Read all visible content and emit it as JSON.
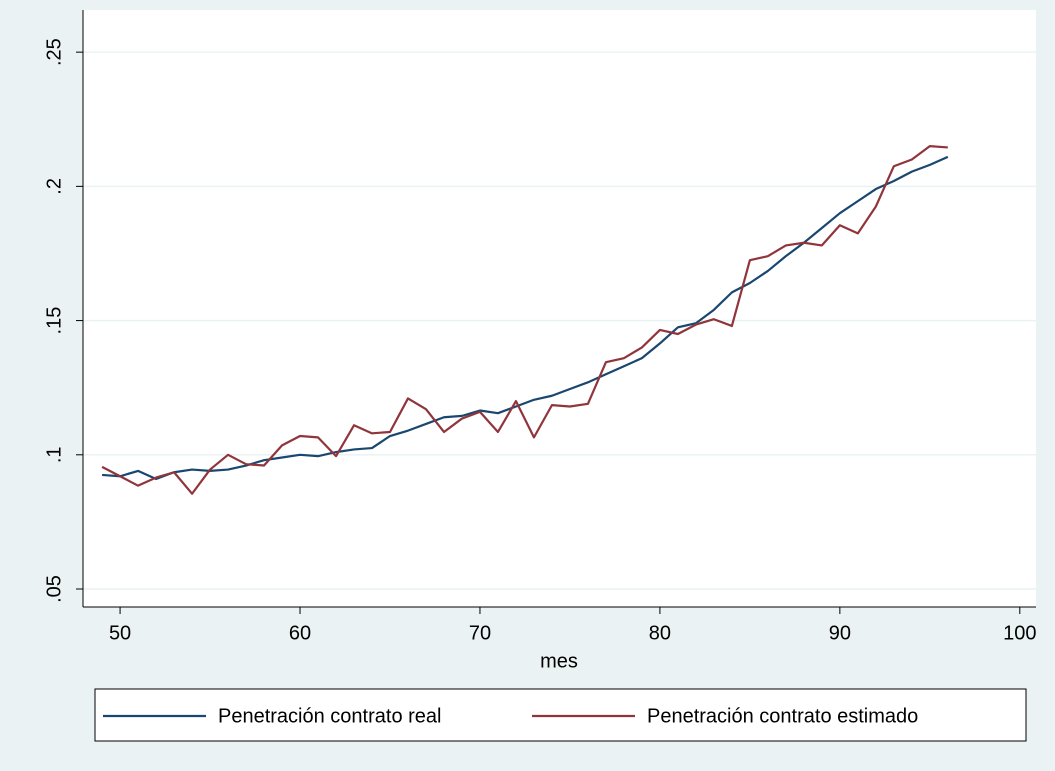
{
  "chart_data": {
    "type": "line",
    "x_label": "mes",
    "x": [
      49,
      50,
      51,
      52,
      53,
      54,
      55,
      56,
      57,
      58,
      59,
      60,
      61,
      62,
      63,
      64,
      65,
      66,
      67,
      68,
      69,
      70,
      71,
      72,
      73,
      74,
      75,
      76,
      77,
      78,
      79,
      80,
      81,
      82,
      83,
      84,
      85,
      86,
      87,
      88,
      89,
      90,
      91,
      92,
      93,
      94,
      95,
      96
    ],
    "series": [
      {
        "name": "Penetración contrato real",
        "color": "#1a476f",
        "values": [
          0.0925,
          0.092,
          0.094,
          0.091,
          0.0935,
          0.0945,
          0.094,
          0.0945,
          0.096,
          0.098,
          0.099,
          0.1,
          0.0995,
          0.101,
          0.102,
          0.1025,
          0.107,
          0.109,
          0.1115,
          0.114,
          0.1145,
          0.1165,
          0.1155,
          0.118,
          0.1205,
          0.122,
          0.1245,
          0.127,
          0.13,
          0.133,
          0.136,
          0.1415,
          0.1475,
          0.149,
          0.154,
          0.1605,
          0.164,
          0.1685,
          0.174,
          0.179,
          0.1845,
          0.19,
          0.1945,
          0.199,
          0.202,
          0.2055,
          0.208,
          0.211
        ]
      },
      {
        "name": "Penetración contrato estimado",
        "color": "#90353b",
        "values": [
          0.0955,
          0.092,
          0.0885,
          0.0915,
          0.0935,
          0.0855,
          0.0945,
          0.1,
          0.0965,
          0.096,
          0.1035,
          0.107,
          0.1065,
          0.0995,
          0.111,
          0.108,
          0.1085,
          0.121,
          0.117,
          0.1085,
          0.1135,
          0.116,
          0.1085,
          0.12,
          0.1065,
          0.1185,
          0.118,
          0.119,
          0.1345,
          0.136,
          0.14,
          0.1465,
          0.145,
          0.1485,
          0.1505,
          0.148,
          0.1725,
          0.174,
          0.178,
          0.179,
          0.178,
          0.1855,
          0.1825,
          0.1925,
          0.2075,
          0.21,
          0.215,
          0.2145
        ]
      }
    ],
    "xlim": [
      47.94,
      100.9
    ],
    "xticks": [
      50,
      60,
      70,
      80,
      90,
      100
    ],
    "ylim": [
      0.0433,
      0.2657
    ],
    "yticks": [
      {
        "value": 0.05,
        "label": ".05"
      },
      {
        "value": 0.1,
        "label": ".1"
      },
      {
        "value": 0.15,
        "label": ".15"
      },
      {
        "value": 0.2,
        "label": ".2"
      },
      {
        "value": 0.25,
        "label": ".25"
      }
    ],
    "grid": true
  }
}
